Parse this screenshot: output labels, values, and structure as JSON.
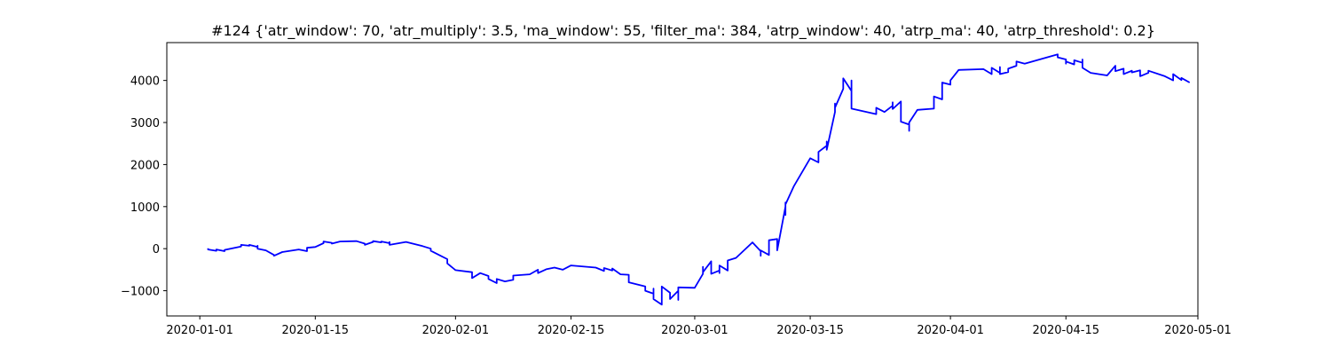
{
  "chart_data": {
    "type": "line",
    "title": "#124 {'atr_window': 70, 'atr_multiply': 3.5, 'ma_window': 55, 'filter_ma': 384, 'atrp_window': 40, 'atrp_ma': 40, 'atrp_threshold': 0.2}",
    "xlabel": "",
    "ylabel": "",
    "xlim": [
      "2019-12-28",
      "2020-05-01"
    ],
    "ylim": [
      -1600,
      4900
    ],
    "grid": false,
    "x_ticks": [
      "2020-01-01",
      "2020-01-15",
      "2020-02-01",
      "2020-02-15",
      "2020-03-01",
      "2020-03-15",
      "2020-04-01",
      "2020-04-15",
      "2020-05-01"
    ],
    "y_ticks": [
      "−1000",
      "0",
      "1000",
      "2000",
      "3000",
      "4000"
    ],
    "y_tick_values": [
      -1000,
      0,
      1000,
      2000,
      3000,
      4000
    ],
    "series": [
      {
        "color": "#0000ff",
        "points": [
          [
            "2020-01-02",
            10
          ],
          [
            "2020-01-02",
            -20
          ],
          [
            "2020-01-03",
            -50
          ],
          [
            "2020-01-03",
            -20
          ],
          [
            "2020-01-04",
            -60
          ],
          [
            "2020-01-04",
            -30
          ],
          [
            "2020-01-06",
            50
          ],
          [
            "2020-01-06",
            90
          ],
          [
            "2020-01-07",
            70
          ],
          [
            "2020-01-07",
            90
          ],
          [
            "2020-01-08",
            40
          ],
          [
            "2020-01-08",
            70
          ],
          [
            "2020-01-08",
            0
          ],
          [
            "2020-01-09",
            -40
          ],
          [
            "2020-01-10",
            -150
          ],
          [
            "2020-01-10",
            -170
          ],
          [
            "2020-01-11",
            -80
          ],
          [
            "2020-01-13",
            -20
          ],
          [
            "2020-01-14",
            -60
          ],
          [
            "2020-01-14",
            20
          ],
          [
            "2020-01-15",
            40
          ],
          [
            "2020-01-16",
            130
          ],
          [
            "2020-01-16",
            170
          ],
          [
            "2020-01-17",
            140
          ],
          [
            "2020-01-17",
            120
          ],
          [
            "2020-01-18",
            170
          ],
          [
            "2020-01-20",
            180
          ],
          [
            "2020-01-21",
            120
          ],
          [
            "2020-01-21",
            90
          ],
          [
            "2020-01-22",
            160
          ],
          [
            "2020-01-22",
            180
          ],
          [
            "2020-01-23",
            150
          ],
          [
            "2020-01-23",
            170
          ],
          [
            "2020-01-24",
            130
          ],
          [
            "2020-01-24",
            160
          ],
          [
            "2020-01-24",
            90
          ],
          [
            "2020-01-26",
            160
          ],
          [
            "2020-01-28",
            60
          ],
          [
            "2020-01-29",
            0
          ],
          [
            "2020-01-29",
            -50
          ],
          [
            "2020-01-30",
            -150
          ],
          [
            "2020-01-31",
            -250
          ],
          [
            "2020-01-31",
            -350
          ],
          [
            "2020-02-01",
            -510
          ],
          [
            "2020-02-03",
            -560
          ],
          [
            "2020-02-03",
            -700
          ],
          [
            "2020-02-04",
            -580
          ],
          [
            "2020-02-05",
            -650
          ],
          [
            "2020-02-05",
            -720
          ],
          [
            "2020-02-06",
            -820
          ],
          [
            "2020-02-06",
            -720
          ],
          [
            "2020-02-07",
            -780
          ],
          [
            "2020-02-08",
            -740
          ],
          [
            "2020-02-08",
            -640
          ],
          [
            "2020-02-10",
            -610
          ],
          [
            "2020-02-11",
            -500
          ],
          [
            "2020-02-11",
            -580
          ],
          [
            "2020-02-12",
            -490
          ],
          [
            "2020-02-13",
            -450
          ],
          [
            "2020-02-14",
            -500
          ],
          [
            "2020-02-15",
            -400
          ],
          [
            "2020-02-18",
            -450
          ],
          [
            "2020-02-19",
            -530
          ],
          [
            "2020-02-19",
            -460
          ],
          [
            "2020-02-20",
            -520
          ],
          [
            "2020-02-20",
            -470
          ],
          [
            "2020-02-21",
            -610
          ],
          [
            "2020-02-22",
            -620
          ],
          [
            "2020-02-22",
            -800
          ],
          [
            "2020-02-24",
            -900
          ],
          [
            "2020-02-24",
            -1000
          ],
          [
            "2020-02-25",
            -1070
          ],
          [
            "2020-02-25",
            -950
          ],
          [
            "2020-02-25",
            -1200
          ],
          [
            "2020-02-26",
            -1330
          ],
          [
            "2020-02-26",
            -1130
          ],
          [
            "2020-02-26",
            -900
          ],
          [
            "2020-02-27",
            -1050
          ],
          [
            "2020-02-27",
            -1200
          ],
          [
            "2020-02-28",
            -1000
          ],
          [
            "2020-02-28",
            -1220
          ],
          [
            "2020-02-28",
            -920
          ],
          [
            "2020-03-01",
            -930
          ],
          [
            "2020-03-02",
            -600
          ],
          [
            "2020-03-02",
            -430
          ],
          [
            "2020-03-02",
            -560
          ],
          [
            "2020-03-03",
            -300
          ],
          [
            "2020-03-03",
            -600
          ],
          [
            "2020-03-04",
            -520
          ],
          [
            "2020-03-04",
            -580
          ],
          [
            "2020-03-04",
            -400
          ],
          [
            "2020-03-05",
            -520
          ],
          [
            "2020-03-05",
            -280
          ],
          [
            "2020-03-06",
            -220
          ],
          [
            "2020-03-08",
            150
          ],
          [
            "2020-03-09",
            -60
          ],
          [
            "2020-03-09",
            -170
          ],
          [
            "2020-03-09",
            -40
          ],
          [
            "2020-03-10",
            -150
          ],
          [
            "2020-03-10",
            200
          ],
          [
            "2020-03-11",
            230
          ],
          [
            "2020-03-11",
            0
          ],
          [
            "2020-03-11",
            -40
          ],
          [
            "2020-03-12",
            1000
          ],
          [
            "2020-03-12",
            1100
          ],
          [
            "2020-03-12",
            800
          ],
          [
            "2020-03-12",
            1050
          ],
          [
            "2020-03-13",
            1480
          ],
          [
            "2020-03-15",
            2150
          ],
          [
            "2020-03-16",
            2050
          ],
          [
            "2020-03-16",
            2300
          ],
          [
            "2020-03-17",
            2450
          ],
          [
            "2020-03-17",
            2550
          ],
          [
            "2020-03-17",
            2350
          ],
          [
            "2020-03-18",
            3250
          ],
          [
            "2020-03-18",
            3450
          ],
          [
            "2020-03-18",
            3350
          ],
          [
            "2020-03-19",
            3800
          ],
          [
            "2020-03-19",
            4050
          ],
          [
            "2020-03-20",
            3750
          ],
          [
            "2020-03-20",
            4000
          ],
          [
            "2020-03-20",
            3330
          ],
          [
            "2020-03-23",
            3200
          ],
          [
            "2020-03-23",
            3350
          ],
          [
            "2020-03-24",
            3250
          ],
          [
            "2020-03-25",
            3400
          ],
          [
            "2020-03-25",
            3480
          ],
          [
            "2020-03-25",
            3320
          ],
          [
            "2020-03-26",
            3500
          ],
          [
            "2020-03-26",
            3020
          ],
          [
            "2020-03-27",
            2950
          ],
          [
            "2020-03-27",
            2800
          ],
          [
            "2020-03-27",
            3000
          ],
          [
            "2020-03-28",
            3300
          ],
          [
            "2020-03-30",
            3330
          ],
          [
            "2020-03-30",
            3620
          ],
          [
            "2020-03-31",
            3550
          ],
          [
            "2020-03-31",
            3700
          ],
          [
            "2020-03-31",
            3950
          ],
          [
            "2020-04-01",
            3900
          ],
          [
            "2020-04-01",
            4000
          ],
          [
            "2020-04-02",
            4250
          ],
          [
            "2020-04-05",
            4270
          ],
          [
            "2020-04-06",
            4150
          ],
          [
            "2020-04-06",
            4300
          ],
          [
            "2020-04-07",
            4180
          ],
          [
            "2020-04-07",
            4320
          ],
          [
            "2020-04-07",
            4150
          ],
          [
            "2020-04-08",
            4200
          ],
          [
            "2020-04-08",
            4280
          ],
          [
            "2020-04-09",
            4350
          ],
          [
            "2020-04-09",
            4450
          ],
          [
            "2020-04-10",
            4400
          ],
          [
            "2020-04-14",
            4620
          ],
          [
            "2020-04-14",
            4550
          ],
          [
            "2020-04-15",
            4500
          ],
          [
            "2020-04-15",
            4400
          ],
          [
            "2020-04-15",
            4450
          ],
          [
            "2020-04-16",
            4380
          ],
          [
            "2020-04-16",
            4480
          ],
          [
            "2020-04-17",
            4420
          ],
          [
            "2020-04-17",
            4500
          ],
          [
            "2020-04-17",
            4300
          ],
          [
            "2020-04-18",
            4180
          ],
          [
            "2020-04-20",
            4120
          ],
          [
            "2020-04-21",
            4350
          ],
          [
            "2020-04-21",
            4220
          ],
          [
            "2020-04-22",
            4280
          ],
          [
            "2020-04-22",
            4150
          ],
          [
            "2020-04-23",
            4230
          ],
          [
            "2020-04-23",
            4190
          ],
          [
            "2020-04-24",
            4240
          ],
          [
            "2020-04-24",
            4100
          ],
          [
            "2020-04-25",
            4180
          ],
          [
            "2020-04-25",
            4230
          ],
          [
            "2020-04-27",
            4100
          ],
          [
            "2020-04-28",
            4000
          ],
          [
            "2020-04-28",
            4150
          ],
          [
            "2020-04-29",
            4010
          ],
          [
            "2020-04-29",
            4060
          ],
          [
            "2020-04-30",
            3950
          ]
        ]
      }
    ]
  }
}
